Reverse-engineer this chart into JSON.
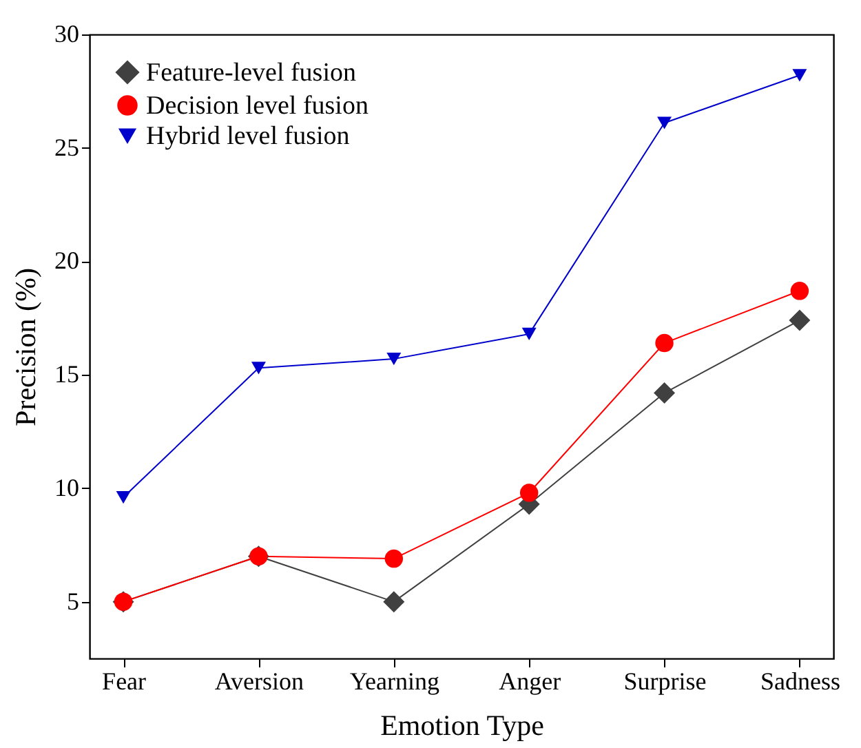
{
  "chart_data": {
    "type": "line",
    "xlabel": "Emotion Type",
    "ylabel": "Precision (%)",
    "categories": [
      "Fear",
      "Aversion",
      "Yearning",
      "Anger",
      "Surprise",
      "Sadness"
    ],
    "series": [
      {
        "name": "Feature-level fusion",
        "color": "#404040",
        "marker": "diamond",
        "values": [
          5.0,
          7.0,
          5.0,
          9.3,
          14.2,
          17.4
        ]
      },
      {
        "name": "Decision level fusion",
        "color": "#ff0000",
        "marker": "circle",
        "values": [
          5.0,
          7.0,
          6.9,
          9.8,
          16.4,
          18.7
        ]
      },
      {
        "name": "Hybrid level fusion",
        "color": "#0000cc",
        "marker": "triangle",
        "values": [
          9.6,
          15.3,
          15.7,
          16.8,
          26.1,
          28.2
        ]
      }
    ],
    "ylim": [
      2.5,
      30
    ],
    "yticks": [
      5,
      10,
      15,
      20,
      25,
      30
    ],
    "grid": false,
    "legend": "top left",
    "line_style": "solid"
  }
}
